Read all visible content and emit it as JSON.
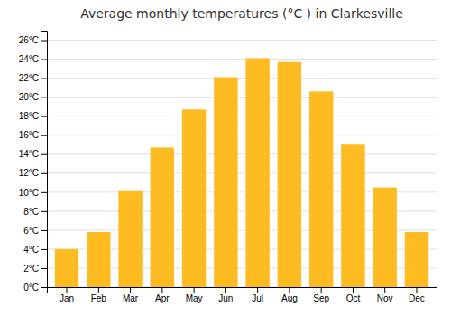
{
  "chart_data": {
    "type": "bar",
    "title": "Average monthly temperatures (°C ) in Clarkesville",
    "categories": [
      "Jan",
      "Feb",
      "Mar",
      "Apr",
      "May",
      "Jun",
      "Jul",
      "Aug",
      "Sep",
      "Oct",
      "Nov",
      "Dec"
    ],
    "values": [
      4.0,
      5.8,
      10.2,
      14.7,
      18.7,
      22.1,
      24.1,
      23.7,
      20.6,
      15.0,
      10.5,
      5.8
    ],
    "color": "#FFBB22",
    "ylim": [
      0,
      27
    ],
    "yticks": [
      {
        "value": 0,
        "label": "0°C"
      },
      {
        "value": 2,
        "label": "2°C"
      },
      {
        "value": 4,
        "label": "4°C"
      },
      {
        "value": 6,
        "label": "6°C"
      },
      {
        "value": 8,
        "label": "8°C"
      },
      {
        "value": 10,
        "label": "10°C"
      },
      {
        "value": 12,
        "label": "12°C"
      },
      {
        "value": 14,
        "label": "14°C"
      },
      {
        "value": 16,
        "label": "16°C"
      },
      {
        "value": 18,
        "label": "18°C"
      },
      {
        "value": 20,
        "label": "20°C"
      },
      {
        "value": 22,
        "label": "22°C"
      },
      {
        "value": 24,
        "label": "24°C"
      },
      {
        "value": 26,
        "label": "26°C"
      }
    ],
    "grid": true
  }
}
